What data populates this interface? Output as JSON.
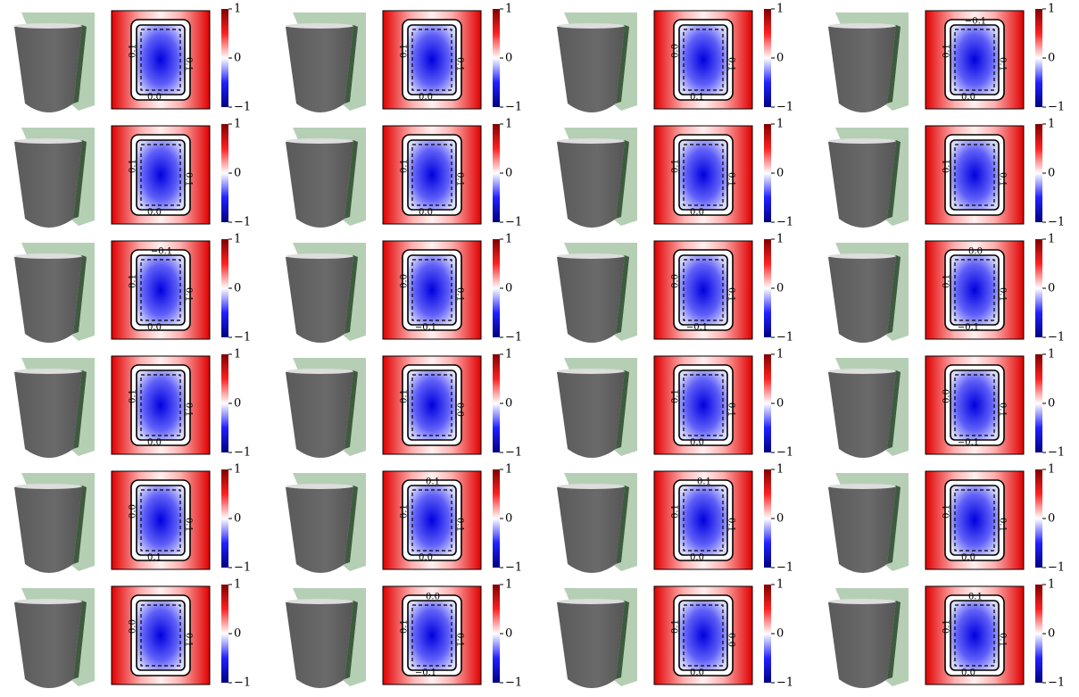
{
  "colorbar": {
    "ticks": [
      {
        "value": 1,
        "label": "1"
      },
      {
        "value": 0,
        "label": "0"
      },
      {
        "value": -1,
        "label": "−1"
      }
    ]
  },
  "panels": [
    {
      "contour_labels": [
        "0.1",
        "0.1",
        "0.0"
      ]
    },
    {
      "contour_labels": [
        "0.1",
        "0.1",
        "0.0"
      ]
    },
    {
      "contour_labels": [
        "0.0",
        "0.1",
        "0.1"
      ]
    },
    {
      "contour_labels": [
        "0.1",
        "0.1",
        "0.0",
        "−0.1"
      ]
    },
    {
      "contour_labels": [
        "0.1",
        "0.1",
        "0.0"
      ]
    },
    {
      "contour_labels": [
        "0.1",
        "0.1",
        "0.0"
      ]
    },
    {
      "contour_labels": [
        "0.1",
        "0.1",
        "0.0"
      ]
    },
    {
      "contour_labels": [
        "0.1",
        "0.1"
      ]
    },
    {
      "contour_labels": [
        "0.1",
        "0.1",
        "0.0",
        "−0.1"
      ]
    },
    {
      "contour_labels": [
        "0.0",
        "0.1",
        "−0.1"
      ]
    },
    {
      "contour_labels": [
        "0.0",
        "0.1",
        "−0.1"
      ]
    },
    {
      "contour_labels": [
        "0.1",
        "0.1",
        "−0.1",
        "0.0"
      ]
    },
    {
      "contour_labels": [
        "0.1",
        "0.1",
        "0.0"
      ]
    },
    {
      "contour_labels": [
        "0.1",
        "0.0"
      ]
    },
    {
      "contour_labels": [
        "0.1",
        "0.1",
        "0.0"
      ]
    },
    {
      "contour_labels": [
        "0.0",
        "0.1",
        "−0.1"
      ]
    },
    {
      "contour_labels": [
        "0.0",
        "0.1",
        "0.1"
      ]
    },
    {
      "contour_labels": [
        "0.1",
        "0.1",
        "0.0",
        "0.1"
      ]
    },
    {
      "contour_labels": [
        "0.1",
        "0.1",
        "0.0",
        "0.1"
      ]
    },
    {
      "contour_labels": [
        "0.1",
        "0.1",
        "0.0"
      ]
    },
    {
      "contour_labels": [
        "0.0",
        "0.1"
      ]
    },
    {
      "contour_labels": [
        "0.1",
        "0.1",
        "−0.1",
        "0.0"
      ]
    },
    {
      "contour_labels": [
        "0.1",
        "0.0",
        "0.0"
      ]
    },
    {
      "contour_labels": [
        "0.1",
        "0.1",
        "0.0",
        "0.1"
      ]
    }
  ]
}
